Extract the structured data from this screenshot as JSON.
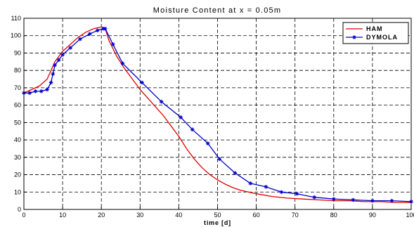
{
  "chart_data": {
    "type": "line",
    "title": "Moisture Content at x = 0.05m",
    "xlabel": "time [d]",
    "ylabel": "",
    "xlim": [
      0,
      100
    ],
    "ylim": [
      0,
      110
    ],
    "xticks": [
      0,
      10,
      20,
      30,
      40,
      50,
      60,
      70,
      80,
      90,
      100
    ],
    "yticks": [
      0,
      10,
      20,
      30,
      40,
      50,
      60,
      70,
      80,
      90,
      100,
      110
    ],
    "grid": true,
    "legend_position": "top-right",
    "series": [
      {
        "name": "HAM",
        "color": "#e00000",
        "marker": "none",
        "x": [
          0,
          2,
          4,
          6,
          7,
          8,
          9,
          10,
          12,
          14,
          16,
          18,
          20,
          21,
          22,
          24,
          26,
          28,
          30,
          32,
          34,
          36,
          38,
          40,
          42,
          44,
          46,
          48,
          50,
          52,
          54,
          56,
          58,
          60,
          64,
          68,
          72,
          76,
          80,
          84,
          88,
          92,
          96,
          100
        ],
        "y": [
          67,
          69,
          71,
          75,
          80,
          85,
          88,
          91,
          95,
          99,
          102,
          104,
          105,
          104,
          97,
          88,
          81,
          75,
          69,
          64,
          59,
          54,
          48,
          42,
          35,
          29,
          24,
          20,
          17,
          14.5,
          12.5,
          11,
          10,
          9,
          7.5,
          6.5,
          6,
          5.5,
          5,
          5,
          4.5,
          4.5,
          4,
          4
        ]
      },
      {
        "name": "DYMOLA",
        "color": "#0000cc",
        "marker": "asterisk",
        "x": [
          0,
          1.5,
          3,
          4.5,
          6,
          7,
          7.5,
          8,
          9,
          10,
          12,
          14.5,
          17,
          19,
          20.5,
          21,
          23,
          25.5,
          30.5,
          35.5,
          40.5,
          43.5,
          47.5,
          50.5,
          54.5,
          58.5,
          62.5,
          66.5,
          70.5,
          75,
          80,
          85,
          90,
          95,
          100
        ],
        "y": [
          67,
          67,
          68,
          68,
          69,
          73,
          78,
          83,
          86,
          89,
          93,
          98,
          101,
          103,
          104,
          104,
          95,
          84,
          73,
          62,
          53,
          46,
          38,
          29,
          21,
          15,
          13,
          10,
          9,
          7,
          6,
          5.5,
          5,
          5,
          4.5
        ]
      }
    ]
  }
}
